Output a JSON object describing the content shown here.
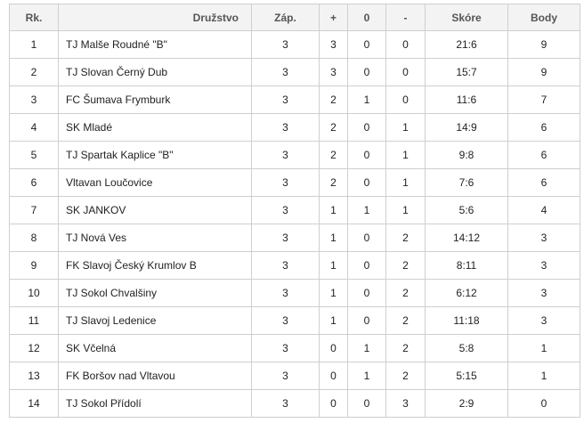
{
  "table": {
    "headers": [
      "Rk.",
      "Družstvo",
      "Záp.",
      "+",
      "0",
      "-",
      "Skóre",
      "Body"
    ],
    "rows": [
      [
        1,
        "TJ Malše Roudné \"B\"",
        3,
        3,
        0,
        0,
        "21:6",
        9
      ],
      [
        2,
        "TJ Slovan Černý Dub",
        3,
        3,
        0,
        0,
        "15:7",
        9
      ],
      [
        3,
        "FC Šumava Frymburk",
        3,
        2,
        1,
        0,
        "11:6",
        7
      ],
      [
        4,
        "SK Mladé",
        3,
        2,
        0,
        1,
        "14:9",
        6
      ],
      [
        5,
        "TJ Spartak Kaplice \"B\"",
        3,
        2,
        0,
        1,
        "9:8",
        6
      ],
      [
        6,
        "Vltavan Loučovice",
        3,
        2,
        0,
        1,
        "7:6",
        6
      ],
      [
        7,
        "SK JANKOV",
        3,
        1,
        1,
        1,
        "5:6",
        4
      ],
      [
        8,
        "TJ Nová Ves",
        3,
        1,
        0,
        2,
        "14:12",
        3
      ],
      [
        9,
        "FK Slavoj Český Krumlov B",
        3,
        1,
        0,
        2,
        "8:11",
        3
      ],
      [
        10,
        "TJ Sokol Chvalšiny",
        3,
        1,
        0,
        2,
        "6:12",
        3
      ],
      [
        11,
        "TJ Slavoj Ledenice",
        3,
        1,
        0,
        2,
        "11:18",
        3
      ],
      [
        12,
        "SK Včelná",
        3,
        0,
        1,
        2,
        "5:8",
        1
      ],
      [
        13,
        "FK Boršov nad Vltavou",
        3,
        0,
        1,
        2,
        "5:15",
        1
      ],
      [
        14,
        "TJ Sokol Přídolí",
        3,
        0,
        0,
        3,
        "2:9",
        0
      ]
    ]
  }
}
